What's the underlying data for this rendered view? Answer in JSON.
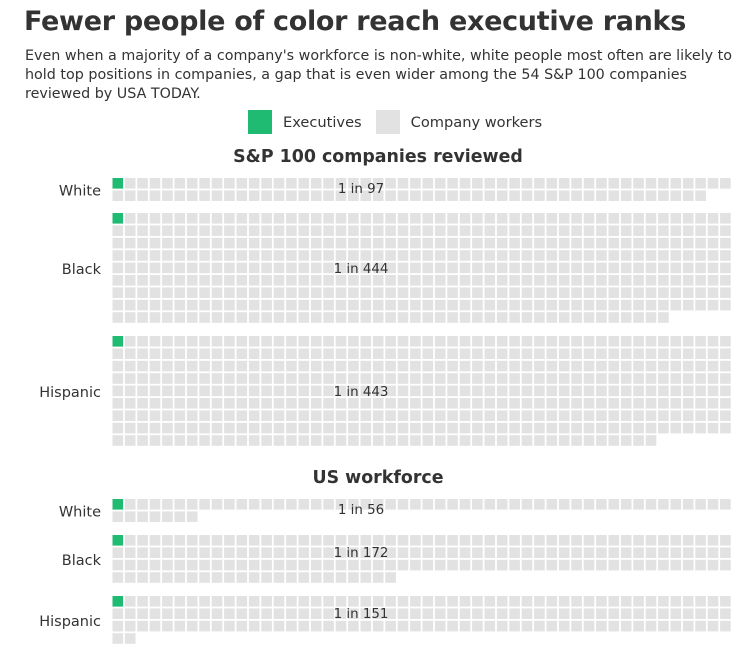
{
  "title": "Fewer people of color reach executive ranks",
  "subtitle": "Even when a majority of a company's workforce is non-white, white people most often are likely to hold top positions in companies, a gap that is even wider among the 54 S&P 100 companies reviewed by USA TODAY.",
  "legend": [
    {
      "label": "Executives",
      "color": "#1fbb72"
    },
    {
      "label": "Company workers",
      "color": "#e2e2e2"
    }
  ],
  "chart_data": {
    "type": "waffle",
    "title": "Fewer people of color reach executive ranks",
    "unit": "1 square = 1 person",
    "panels": [
      {
        "title": "S&P 100 companies reviewed",
        "rows": [
          {
            "group": "White",
            "executives": 1,
            "workers": 97,
            "label": "1 in 97"
          },
          {
            "group": "Black",
            "executives": 1,
            "workers": 444,
            "label": "1 in 444"
          },
          {
            "group": "Hispanic",
            "executives": 1,
            "workers": 443,
            "label": "1 in 443"
          }
        ]
      },
      {
        "title": "US workforce",
        "rows": [
          {
            "group": "White",
            "executives": 1,
            "workers": 56,
            "label": "1 in 56"
          },
          {
            "group": "Black",
            "executives": 1,
            "workers": 172,
            "label": "1 in 172"
          },
          {
            "group": "Hispanic",
            "executives": 1,
            "workers": 151,
            "label": "1 in 151"
          }
        ]
      }
    ]
  }
}
